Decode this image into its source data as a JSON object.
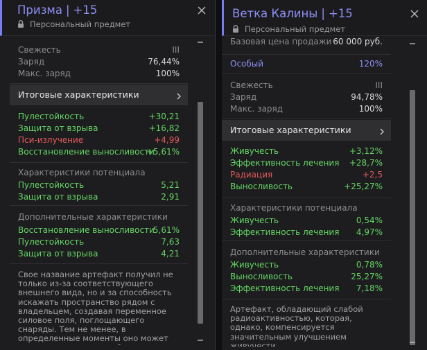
{
  "panel1": {
    "title": "Призма",
    "separator": "|",
    "level": "+15",
    "subtitle": "Персональный предмет",
    "freshness": {
      "label": "Свежесть",
      "value": "III"
    },
    "charge": {
      "label": "Заряд",
      "value": "76,44%"
    },
    "max_charge": {
      "label": "Макс. заряд",
      "value": "100%"
    },
    "summary_label": "Итоговые характеристики",
    "final_stats": [
      {
        "label": "Пулестойкость",
        "value": "+30,21",
        "color": "green"
      },
      {
        "label": "Защита от взрыва",
        "value": "+16,82",
        "color": "green"
      },
      {
        "label": "Пси-излучение",
        "value": "+4,99",
        "color": "red"
      },
      {
        "label": "Восстановление выносливости",
        "value": "+5,61%",
        "color": "green"
      }
    ],
    "potential_title": "Характеристики потенциала",
    "potential_stats": [
      {
        "label": "Пулестойкость",
        "value": "5,21"
      },
      {
        "label": "Защита от взрыва",
        "value": "2,91"
      }
    ],
    "additional_title": "Дополнительные характеристики",
    "additional_stats": [
      {
        "label": "Восстановление выносливости",
        "value": "5,61%"
      },
      {
        "label": "Пулестойкость",
        "value": "7,63"
      },
      {
        "label": "Защита от взрыва",
        "value": "4,21"
      }
    ],
    "description": "Свое название артефакт получил не только из-за соответствующего внешнего вида, но и за способность искажать пространство рядом с владельцем, создавая переменное силовое поля, поглощающего снаряды. Тем не менее, в определенные моменты оно может привести к получению более"
  },
  "panel2": {
    "title": "Ветка Калины",
    "separator": "|",
    "level": "+15",
    "subtitle": "Персональный предмет",
    "base_price": {
      "label": "Базовая цена продажи",
      "value": "60 000 руб."
    },
    "special": {
      "label": "Особый",
      "value": "120%"
    },
    "freshness": {
      "label": "Свежесть",
      "value": "III"
    },
    "charge": {
      "label": "Заряд",
      "value": "94,78%"
    },
    "max_charge": {
      "label": "Макс. заряд",
      "value": "100%"
    },
    "summary_label": "Итоговые характеристики",
    "final_stats": [
      {
        "label": "Живучесть",
        "value": "+3,12%",
        "color": "green"
      },
      {
        "label": "Эффективность лечения",
        "value": "+28,7%",
        "color": "green"
      },
      {
        "label": "Радиация",
        "value": "+2,5",
        "color": "red"
      },
      {
        "label": "Выносливость",
        "value": "+25,27%",
        "color": "green"
      }
    ],
    "potential_title": "Характеристики потенциала",
    "potential_stats": [
      {
        "label": "Живучесть",
        "value": "0,54%"
      },
      {
        "label": "Эффективность лечения",
        "value": "4,97%"
      }
    ],
    "additional_title": "Дополнительные характеристики",
    "additional_stats": [
      {
        "label": "Живучесть",
        "value": "0,78%"
      },
      {
        "label": "Выносливость",
        "value": "25,27%"
      },
      {
        "label": "Эффективность лечения",
        "value": "7,18%"
      }
    ],
    "description": "Артефакт, обладающий слабой радиоактивностью, которая, однако, компенсируется значительным улучшением живучести."
  },
  "colors": {
    "accent": "#8e8ef6",
    "positive": "#64d464",
    "negative": "#e5595b",
    "panel_bg": "#1d1d1f",
    "summary_bg": "#2f2f31"
  },
  "icons": {
    "lock": "lock-icon",
    "close": "close-icon",
    "chevron": "chevron-right-icon"
  }
}
